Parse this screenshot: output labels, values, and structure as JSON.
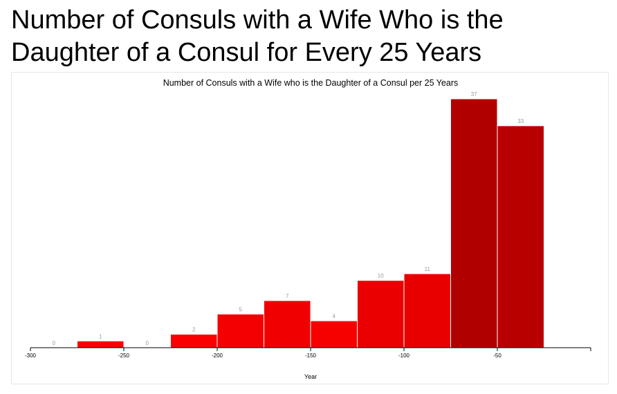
{
  "page": {
    "title": "Number of Consuls with a Wife Who is the Daughter of a Consul for Every 25 Years"
  },
  "chart_data": {
    "type": "bar",
    "title": "Number of Consuls with a Wife who is the Daughter of a Consul per 25 Years",
    "xlabel": "Year",
    "ylabel": "",
    "xlim": [
      -300,
      0
    ],
    "ylim": [
      0,
      37
    ],
    "bin_width": 25,
    "xticks": [
      -300,
      -250,
      -200,
      -150,
      -100,
      -50
    ],
    "bins": [
      {
        "start": -300,
        "end": -275,
        "value": 0
      },
      {
        "start": -275,
        "end": -250,
        "value": 1
      },
      {
        "start": -250,
        "end": -225,
        "value": 0
      },
      {
        "start": -225,
        "end": -200,
        "value": 2
      },
      {
        "start": -200,
        "end": -175,
        "value": 5
      },
      {
        "start": -175,
        "end": -150,
        "value": 7
      },
      {
        "start": -150,
        "end": -125,
        "value": 4
      },
      {
        "start": -125,
        "end": -100,
        "value": 10
      },
      {
        "start": -100,
        "end": -75,
        "value": 11
      },
      {
        "start": -75,
        "end": -50,
        "value": 37
      },
      {
        "start": -50,
        "end": -25,
        "value": 33
      }
    ],
    "colors": {
      "bar_low": "#ff0000",
      "bar_high": "#b00000",
      "bar_outline": "#ffffff",
      "value_label": "#999999",
      "axis": "#000000",
      "text": "#000000"
    },
    "grid": false,
    "legend": "none"
  }
}
